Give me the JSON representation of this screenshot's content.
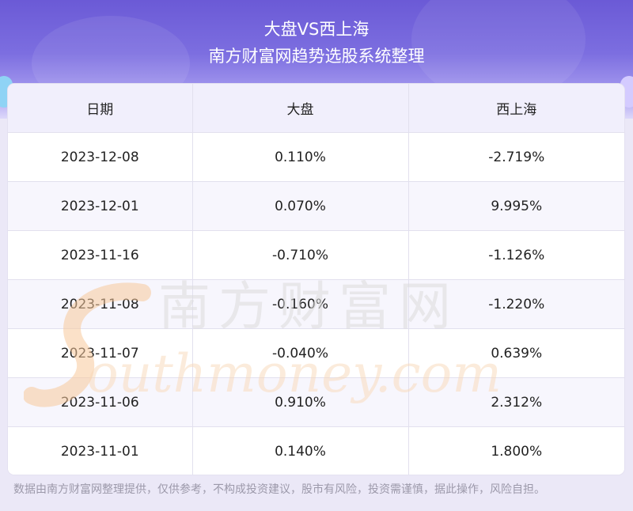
{
  "header": {
    "title": "大盘VS西上海",
    "subtitle": "南方财富网趋势选股系统整理"
  },
  "table": {
    "columns": [
      "日期",
      "大盘",
      "西上海"
    ],
    "rows": [
      [
        "2023-12-08",
        "0.110%",
        "-2.719%"
      ],
      [
        "2023-12-01",
        "0.070%",
        "9.995%"
      ],
      [
        "2023-11-16",
        "-0.710%",
        "-1.126%"
      ],
      [
        "2023-11-08",
        "-0.160%",
        "-1.220%"
      ],
      [
        "2023-11-07",
        "-0.040%",
        "0.639%"
      ],
      [
        "2023-11-06",
        "0.910%",
        "2.312%"
      ],
      [
        "2023-11-01",
        "0.140%",
        "1.800%"
      ]
    ]
  },
  "watermark": {
    "cn": "南方财富网",
    "en": "outhmoney.com"
  },
  "footer": {
    "disclaimer": "数据由南方财富网整理提供，仅供参考，不构成投资建议，股市有风险，投资需谨慎，据此操作，风险自担。"
  }
}
